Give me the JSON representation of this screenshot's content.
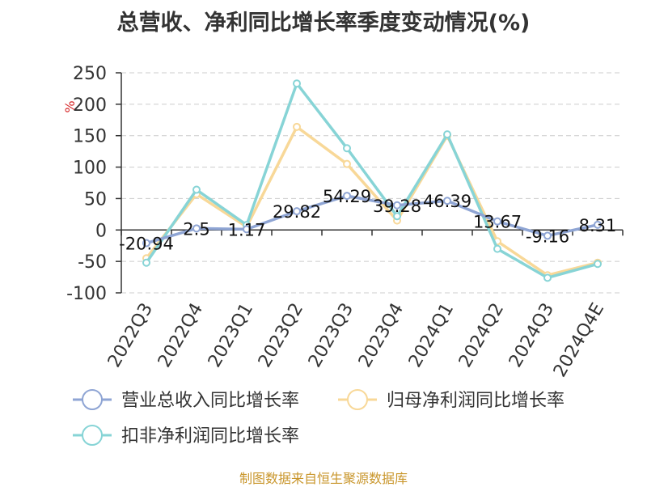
{
  "colors": {
    "revenue": "#8fa5d4",
    "net_profit": "#f8d898",
    "deducted_profit": "#87d4d6",
    "source": "#c9962b",
    "unit": "#d62728"
  },
  "source_note": "制图数据来自恒生聚源数据库",
  "chart_data": {
    "type": "line",
    "title": "总营收、净利同比增长率季度变动情况(%)",
    "ylabel": "%",
    "xlabel": "",
    "ylim": [
      -100,
      250
    ],
    "yticks": [
      250,
      200,
      150,
      100,
      50,
      0,
      -50,
      -100
    ],
    "grid": true,
    "legend_position": "bottom",
    "categories": [
      "2022Q3",
      "2022Q4",
      "2023Q1",
      "2023Q2",
      "2023Q3",
      "2023Q4",
      "2024Q1",
      "2024Q2",
      "2024Q3",
      "2024Q4E"
    ],
    "series": [
      {
        "name": "营业总收入同比增长率",
        "values": [
          -20.94,
          2.5,
          1.17,
          29.82,
          54.29,
          39.28,
          46.39,
          13.67,
          -9.16,
          8.31
        ],
        "labels": [
          "-20.94",
          "2.5",
          "1.17",
          "29.82",
          "54.29",
          "39.28",
          "46.39",
          "13.67",
          "-9.16",
          "8.31"
        ]
      },
      {
        "name": "归母净利润同比增长率",
        "values": [
          -45,
          57,
          5,
          164,
          105,
          15,
          150,
          -18,
          -72,
          -52
        ]
      },
      {
        "name": "扣非净利润同比增长率",
        "values": [
          -52,
          64,
          8,
          233,
          130,
          22,
          152,
          -30,
          -76,
          -54
        ]
      }
    ]
  }
}
